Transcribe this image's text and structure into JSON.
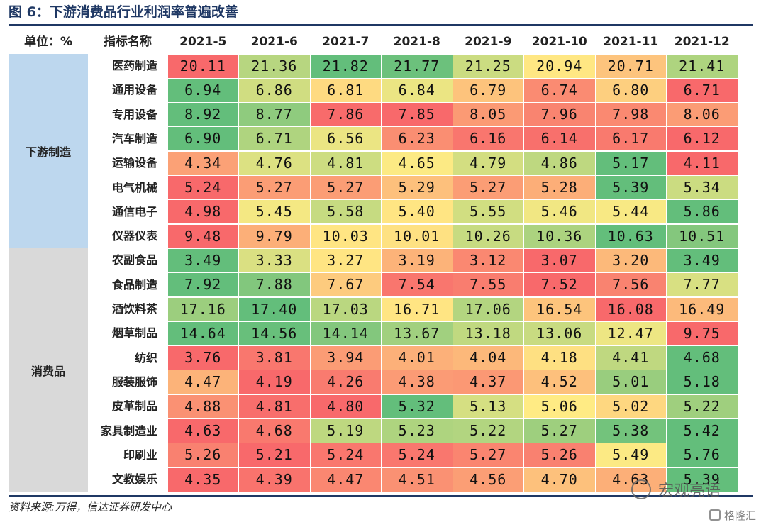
{
  "title": "图 6：下游消费品行业利润率普遍改善",
  "source": "资料来源:万得，信达证券研发中心",
  "watermark": "宏观亮语",
  "watermark2": "格隆汇",
  "colors": {
    "low": "#f8696b",
    "mid": "#ffeb84",
    "high": "#63be7b",
    "group_downstream": "#bdd7ee",
    "group_consumer": "#d9d9d9"
  },
  "chart_data": {
    "type": "table",
    "title": "图 6：下游消费品行业利润率普遍改善",
    "unit_label": "单位：%",
    "name_header": "指标名称",
    "columns": [
      "2021-5",
      "2021-6",
      "2021-7",
      "2021-8",
      "2021-9",
      "2021-10",
      "2021-11",
      "2021-12"
    ],
    "groups": [
      {
        "name": "下游制造",
        "rows": [
          {
            "name": "医药制造",
            "values": [
              "20.11",
              "21.36",
              "21.82",
              "21.77",
              "21.25",
              "20.94",
              "20.71",
              "21.41"
            ]
          },
          {
            "name": "通用设备",
            "values": [
              "6.94",
              "6.86",
              "6.81",
              "6.84",
              "6.79",
              "6.74",
              "6.80",
              "6.71"
            ]
          },
          {
            "name": "专用设备",
            "values": [
              "8.92",
              "8.77",
              "7.86",
              "7.85",
              "8.05",
              "7.96",
              "7.98",
              "8.06"
            ]
          },
          {
            "name": "汽车制造",
            "values": [
              "6.90",
              "6.71",
              "6.56",
              "6.23",
              "6.16",
              "6.14",
              "6.17",
              "6.12"
            ]
          },
          {
            "name": "运输设备",
            "values": [
              "4.34",
              "4.76",
              "4.81",
              "4.65",
              "4.79",
              "4.86",
              "5.17",
              "4.11"
            ]
          },
          {
            "name": "电气机械",
            "values": [
              "5.24",
              "5.27",
              "5.27",
              "5.29",
              "5.27",
              "5.28",
              "5.39",
              "5.34"
            ]
          },
          {
            "name": "通信电子",
            "values": [
              "4.98",
              "5.45",
              "5.58",
              "5.40",
              "5.55",
              "5.46",
              "5.44",
              "5.86"
            ]
          },
          {
            "name": "仪器仪表",
            "values": [
              "9.48",
              "9.79",
              "10.03",
              "10.01",
              "10.26",
              "10.36",
              "10.63",
              "10.51"
            ]
          }
        ]
      },
      {
        "name": "消费品",
        "rows": [
          {
            "name": "农副食品",
            "values": [
              "3.49",
              "3.33",
              "3.27",
              "3.19",
              "3.12",
              "3.07",
              "3.20",
              "3.49"
            ]
          },
          {
            "name": "食品制造",
            "values": [
              "7.92",
              "7.88",
              "7.67",
              "7.54",
              "7.55",
              "7.52",
              "7.56",
              "7.77"
            ]
          },
          {
            "name": "酒饮料茶",
            "values": [
              "17.16",
              "17.40",
              "17.03",
              "16.71",
              "17.06",
              "16.54",
              "16.08",
              "16.49"
            ]
          },
          {
            "name": "烟草制品",
            "values": [
              "14.64",
              "14.56",
              "14.14",
              "13.67",
              "13.18",
              "13.06",
              "12.47",
              "9.75"
            ]
          },
          {
            "name": "纺织",
            "values": [
              "3.76",
              "3.81",
              "3.94",
              "4.01",
              "4.04",
              "4.18",
              "4.41",
              "4.68"
            ]
          },
          {
            "name": "服装服饰",
            "values": [
              "4.47",
              "4.19",
              "4.26",
              "4.38",
              "4.37",
              "4.52",
              "5.01",
              "5.18"
            ]
          },
          {
            "name": "皮革制品",
            "values": [
              "4.88",
              "4.81",
              "4.80",
              "5.32",
              "5.13",
              "5.06",
              "5.02",
              "5.22"
            ]
          },
          {
            "name": "家具制造业",
            "values": [
              "4.63",
              "4.68",
              "5.19",
              "5.23",
              "5.22",
              "5.27",
              "5.38",
              "5.42"
            ]
          },
          {
            "name": "印刷业",
            "values": [
              "5.26",
              "5.21",
              "5.24",
              "5.24",
              "5.27",
              "5.26",
              "5.49",
              "5.76"
            ]
          },
          {
            "name": "文教娱乐",
            "values": [
              "4.35",
              "4.39",
              "4.47",
              "4.51",
              "4.56",
              "4.70",
              "4.63",
              "5.39"
            ]
          }
        ]
      }
    ]
  }
}
